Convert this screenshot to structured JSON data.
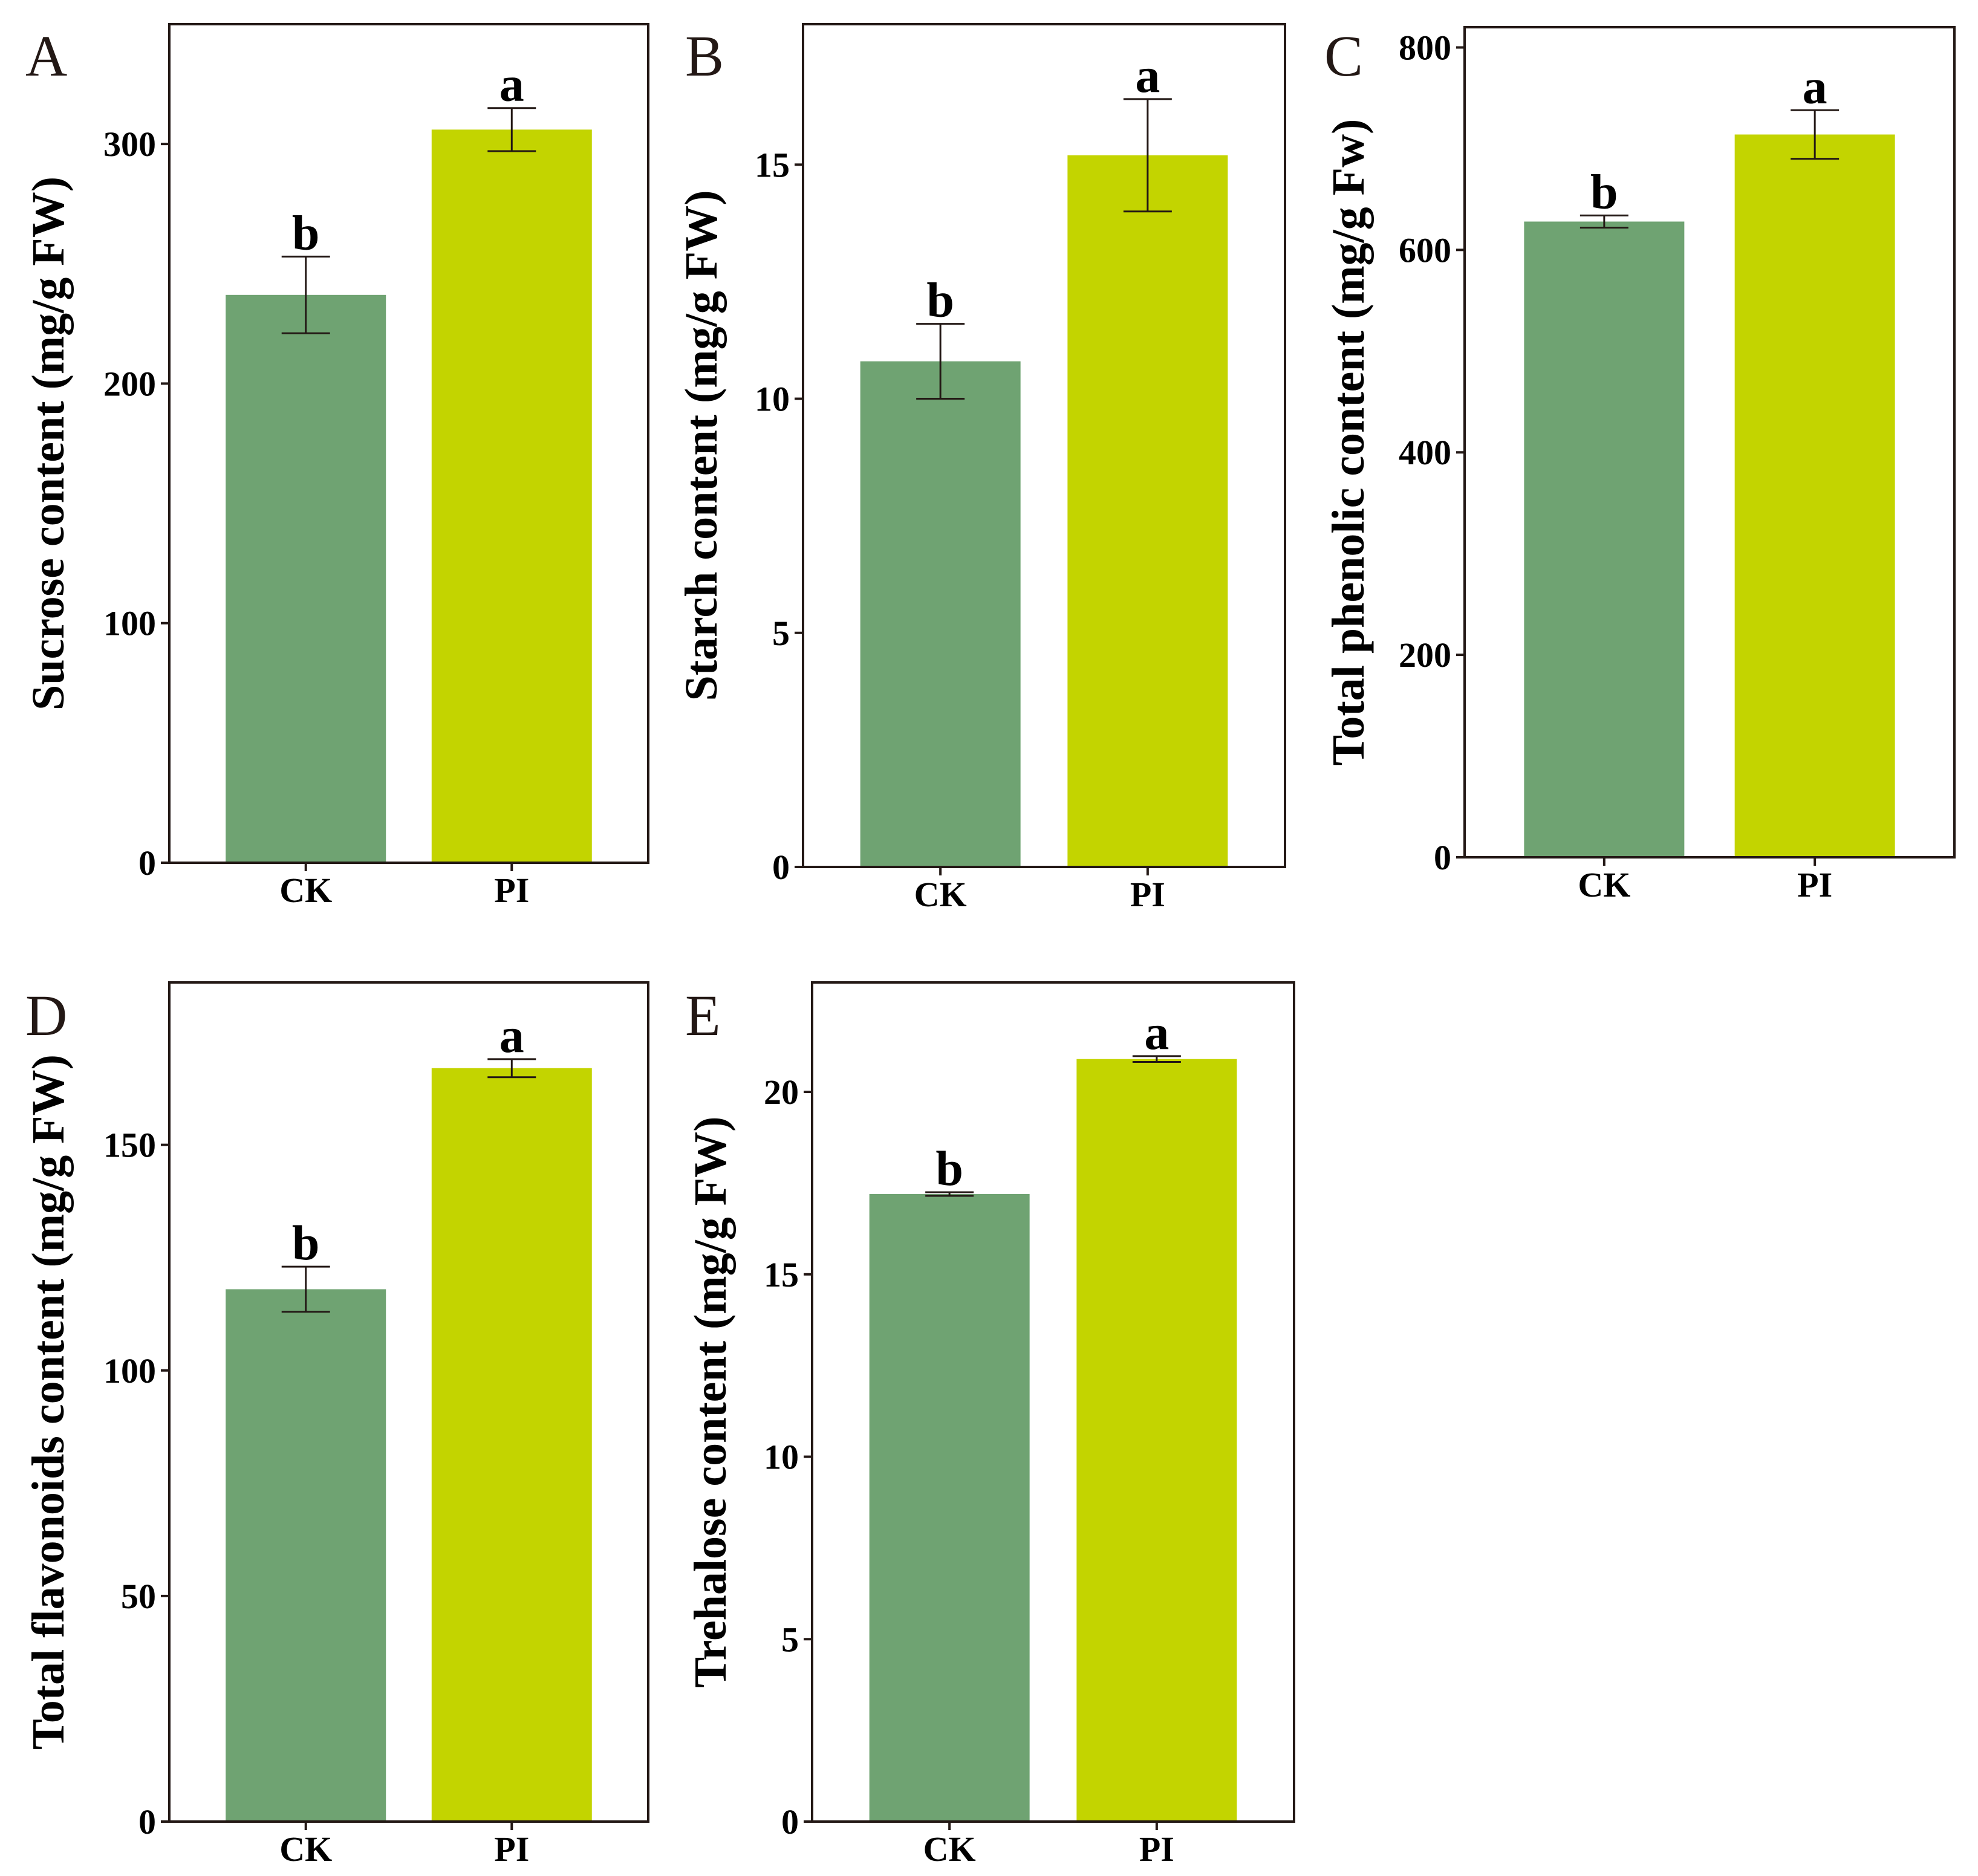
{
  "chart_data": [
    {
      "panel": "A",
      "type": "bar",
      "categories": [
        "CK",
        "PI"
      ],
      "values": [
        237,
        306
      ],
      "errors": [
        16,
        9
      ],
      "significance": [
        "b",
        "a"
      ],
      "colors": [
        "#6fa372",
        "#c3d400"
      ],
      "ylabel": "Sucrose content (mg/g FW)",
      "xlabel": "",
      "ylim": [
        0,
        350
      ],
      "yticks": [
        0,
        100,
        200,
        300
      ],
      "ytick_labels": [
        "0",
        "100",
        "200",
        "300"
      ]
    },
    {
      "panel": "B",
      "type": "bar",
      "categories": [
        "CK",
        "PI"
      ],
      "values": [
        10.8,
        15.2
      ],
      "errors": [
        0.8,
        1.2
      ],
      "significance": [
        "b",
        "a"
      ],
      "colors": [
        "#6fa372",
        "#c3d400"
      ],
      "ylabel": "Starch content (mg/g FW)",
      "xlabel": "",
      "ylim": [
        0,
        18
      ],
      "yticks": [
        0,
        5,
        10,
        15
      ],
      "ytick_labels": [
        "0",
        "5",
        "10",
        "15"
      ]
    },
    {
      "panel": "C",
      "type": "bar",
      "categories": [
        "CK",
        "PI"
      ],
      "values": [
        628,
        714
      ],
      "errors": [
        6,
        24
      ],
      "significance": [
        "b",
        "a"
      ],
      "colors": [
        "#6fa372",
        "#c3d400"
      ],
      "ylabel": "Total phenolic content (mg/g Fw)",
      "xlabel": "",
      "ylim": [
        0,
        820
      ],
      "yticks": [
        0,
        200,
        400,
        600,
        800
      ],
      "ytick_labels": [
        "0",
        "200",
        "400",
        "600",
        "800"
      ]
    },
    {
      "panel": "D",
      "type": "bar",
      "categories": [
        "CK",
        "PI"
      ],
      "values": [
        118,
        167
      ],
      "errors": [
        5,
        2
      ],
      "significance": [
        "b",
        "a"
      ],
      "colors": [
        "#6fa372",
        "#c3d400"
      ],
      "ylabel": "Total flavonoids content (mg/g FW)",
      "xlabel": "",
      "ylim": [
        0,
        186
      ],
      "yticks": [
        0,
        50,
        100,
        150
      ],
      "ytick_labels": [
        "0",
        "50",
        "100",
        "150"
      ]
    },
    {
      "panel": "E",
      "type": "bar",
      "categories": [
        "CK",
        "PI"
      ],
      "values": [
        17.2,
        20.9
      ],
      "errors": [
        0.05,
        0.08
      ],
      "significance": [
        "b",
        "a"
      ],
      "colors": [
        "#6fa372",
        "#c3d400"
      ],
      "ylabel": "Trehalose content (mg/g FW)",
      "xlabel": "",
      "ylim": [
        0,
        23
      ],
      "yticks": [
        0,
        5,
        10,
        15,
        20
      ],
      "ytick_labels": [
        "0",
        "5",
        "10",
        "15",
        "20"
      ]
    }
  ]
}
